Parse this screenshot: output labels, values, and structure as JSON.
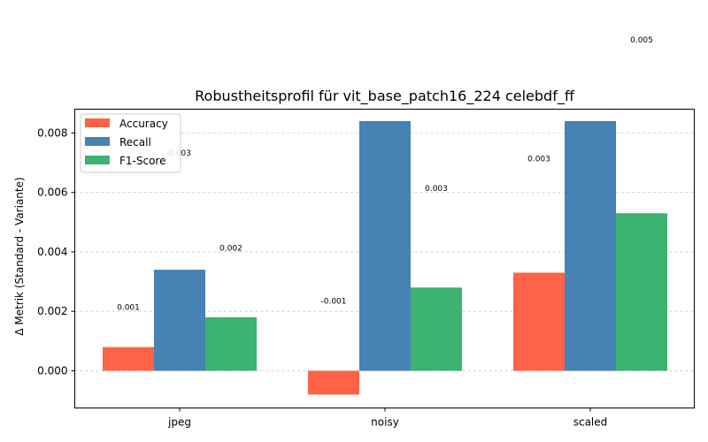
{
  "chart_data": {
    "type": "bar",
    "title": "Robustheitsprofil für vit_base_patch16_224 celebdf_ff",
    "xlabel": "",
    "ylabel": "Δ Metrik (Standard - Variante)",
    "categories": [
      "jpeg",
      "noisy",
      "scaled"
    ],
    "series": [
      {
        "name": "Accuracy",
        "color": "#ff6347",
        "values": [
          0.0008,
          -0.0008,
          0.0033
        ]
      },
      {
        "name": "Recall",
        "color": "#4682b4",
        "values": [
          0.0034,
          0.0084,
          0.0084
        ]
      },
      {
        "name": "F1-Score",
        "color": "#3cb371",
        "values": [
          0.0018,
          0.0028,
          0.0053
        ]
      }
    ],
    "value_labels": [
      [
        "0.001",
        "-0.001",
        "0.003"
      ],
      [
        "0.003",
        "0.008",
        "0.008"
      ],
      [
        "0.002",
        "0.003",
        "0.005"
      ]
    ],
    "yticks": [
      0.0,
      0.002,
      0.004,
      0.006,
      0.008
    ],
    "ytick_labels": [
      "0.000",
      "0.002",
      "0.004",
      "0.006",
      "0.008"
    ],
    "ylim": [
      -0.00125,
      0.0088
    ],
    "grid": "y-dashed",
    "legend_position": "top-left"
  }
}
